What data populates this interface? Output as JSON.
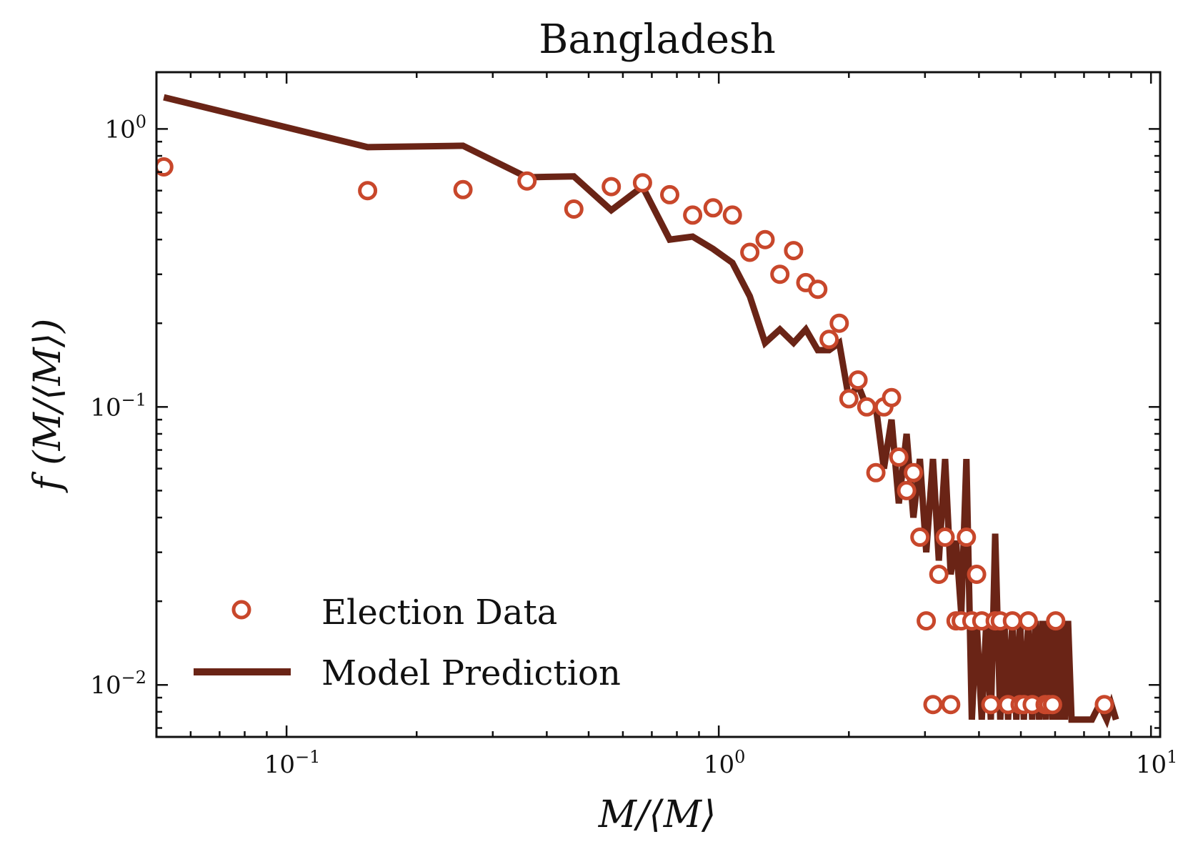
{
  "chart_data": {
    "type": "scatter",
    "title": "Bangladesh",
    "xlabel": "M/⟨M⟩",
    "ylabel": "f (M/⟨M⟩)",
    "xscale": "log",
    "yscale": "log",
    "xlim": [
      0.05,
      10.5
    ],
    "ylim": [
      0.0065,
      1.6
    ],
    "grid": false,
    "legend_position": "lower-left",
    "x_ticks": [
      {
        "value": 0.1,
        "base": "10",
        "exp": "−1"
      },
      {
        "value": 1,
        "base": "10",
        "exp": "0"
      },
      {
        "value": 10,
        "base": "10",
        "exp": "1"
      }
    ],
    "y_ticks": [
      {
        "value": 1,
        "base": "10",
        "exp": "0"
      },
      {
        "value": 0.1,
        "base": "10",
        "exp": "−1"
      },
      {
        "value": 0.01,
        "base": "10",
        "exp": "−2"
      }
    ],
    "series": [
      {
        "name": "Election Data",
        "kind": "scatter",
        "color": "#c8472b",
        "points": [
          [
            0.052,
            0.73
          ],
          [
            0.154,
            0.6
          ],
          [
            0.256,
            0.605
          ],
          [
            0.36,
            0.65
          ],
          [
            0.462,
            0.515
          ],
          [
            0.564,
            0.62
          ],
          [
            0.666,
            0.64
          ],
          [
            0.77,
            0.58
          ],
          [
            0.87,
            0.49
          ],
          [
            0.97,
            0.52
          ],
          [
            1.075,
            0.49
          ],
          [
            1.18,
            0.36
          ],
          [
            1.28,
            0.4
          ],
          [
            1.385,
            0.3
          ],
          [
            1.49,
            0.365
          ],
          [
            1.59,
            0.28
          ],
          [
            1.695,
            0.265
          ],
          [
            1.8,
            0.175
          ],
          [
            1.9,
            0.2
          ],
          [
            2.0,
            0.107
          ],
          [
            2.1,
            0.125
          ],
          [
            2.2,
            0.1
          ],
          [
            2.31,
            0.058
          ],
          [
            2.41,
            0.1
          ],
          [
            2.51,
            0.108
          ],
          [
            2.61,
            0.066
          ],
          [
            2.72,
            0.05
          ],
          [
            2.82,
            0.058
          ],
          [
            2.92,
            0.034
          ],
          [
            3.02,
            0.017
          ],
          [
            3.13,
            0.0085
          ],
          [
            3.23,
            0.025
          ],
          [
            3.34,
            0.034
          ],
          [
            3.44,
            0.0085
          ],
          [
            3.54,
            0.017
          ],
          [
            3.64,
            0.017
          ],
          [
            3.74,
            0.034
          ],
          [
            3.85,
            0.017
          ],
          [
            3.95,
            0.025
          ],
          [
            4.06,
            0.017
          ],
          [
            4.26,
            0.0085
          ],
          [
            4.36,
            0.017
          ],
          [
            4.48,
            0.017
          ],
          [
            4.67,
            0.0085
          ],
          [
            4.78,
            0.017
          ],
          [
            4.98,
            0.0085
          ],
          [
            5.08,
            0.0085
          ],
          [
            5.2,
            0.017
          ],
          [
            5.31,
            0.0085
          ],
          [
            5.69,
            0.0085
          ],
          [
            5.8,
            0.0085
          ],
          [
            5.92,
            0.0085
          ],
          [
            6.02,
            0.017
          ],
          [
            7.8,
            0.0085
          ]
        ]
      },
      {
        "name": "Model Prediction",
        "kind": "line",
        "color": "#6a2416",
        "points": [
          [
            0.052,
            1.3
          ],
          [
            0.154,
            0.86
          ],
          [
            0.256,
            0.87
          ],
          [
            0.36,
            0.67
          ],
          [
            0.462,
            0.675
          ],
          [
            0.564,
            0.51
          ],
          [
            0.666,
            0.62
          ],
          [
            0.77,
            0.4
          ],
          [
            0.87,
            0.41
          ],
          [
            0.97,
            0.37
          ],
          [
            1.075,
            0.33
          ],
          [
            1.18,
            0.25
          ],
          [
            1.28,
            0.17
          ],
          [
            1.385,
            0.19
          ],
          [
            1.49,
            0.17
          ],
          [
            1.59,
            0.19
          ],
          [
            1.695,
            0.16
          ],
          [
            1.8,
            0.16
          ],
          [
            1.9,
            0.17
          ],
          [
            2.0,
            0.107
          ],
          [
            2.1,
            0.12
          ],
          [
            2.2,
            0.1
          ],
          [
            2.31,
            0.1
          ],
          [
            2.41,
            0.06
          ],
          [
            2.51,
            0.09
          ],
          [
            2.61,
            0.045
          ],
          [
            2.72,
            0.08
          ],
          [
            2.82,
            0.04
          ],
          [
            2.92,
            0.065
          ],
          [
            3.02,
            0.03
          ],
          [
            3.13,
            0.065
          ],
          [
            3.23,
            0.028
          ],
          [
            3.34,
            0.065
          ],
          [
            3.44,
            0.025
          ],
          [
            3.54,
            0.033
          ],
          [
            3.64,
            0.018
          ],
          [
            3.74,
            0.065
          ],
          [
            3.85,
            0.0075
          ],
          [
            3.95,
            0.017
          ],
          [
            4.06,
            0.0075
          ],
          [
            4.16,
            0.017
          ],
          [
            4.26,
            0.0075
          ],
          [
            4.36,
            0.035
          ],
          [
            4.48,
            0.0075
          ],
          [
            4.58,
            0.017
          ],
          [
            4.67,
            0.0075
          ],
          [
            4.78,
            0.017
          ],
          [
            4.88,
            0.0075
          ],
          [
            4.98,
            0.017
          ],
          [
            5.08,
            0.0075
          ],
          [
            5.2,
            0.017
          ],
          [
            5.31,
            0.0075
          ],
          [
            5.41,
            0.017
          ],
          [
            5.51,
            0.0075
          ],
          [
            5.61,
            0.017
          ],
          [
            5.71,
            0.0075
          ],
          [
            5.8,
            0.017
          ],
          [
            5.92,
            0.0075
          ],
          [
            6.02,
            0.017
          ],
          [
            6.12,
            0.0075
          ],
          [
            6.22,
            0.017
          ],
          [
            6.32,
            0.0075
          ],
          [
            6.43,
            0.017
          ],
          [
            6.55,
            0.0075
          ],
          [
            6.8,
            0.0075
          ],
          [
            7.3,
            0.0075
          ],
          [
            7.6,
            0.0085
          ],
          [
            7.9,
            0.0075
          ],
          [
            8.1,
            0.0085
          ],
          [
            8.3,
            0.0075
          ]
        ]
      }
    ]
  }
}
